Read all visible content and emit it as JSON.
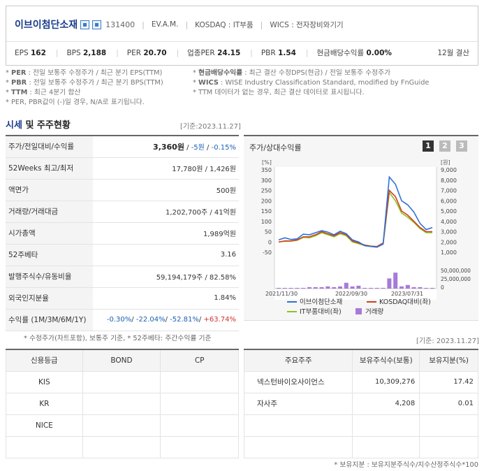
{
  "company": {
    "name": "이브이첨단소재",
    "code": "131400",
    "ceo": "EV.A.M.",
    "market": "KOSDAQ : IT부품",
    "wics": "WICS : 전자장비와기기"
  },
  "metrics": [
    {
      "label": "EPS",
      "value": "162"
    },
    {
      "label": "BPS",
      "value": "2,188"
    },
    {
      "label": "PER",
      "value": "20.70"
    },
    {
      "label": "업종PER",
      "value": "24.15"
    },
    {
      "label": "PBR",
      "value": "1.54"
    },
    {
      "label": "현금배당수익률",
      "value": "0.00%"
    }
  ],
  "settlement": "12월 결산",
  "notes_left": [
    {
      "key": "PER",
      "text": ": 전일 보통주 수정주가 / 최근 분기 EPS(TTM)"
    },
    {
      "key": "PBR",
      "text": ": 전일 보통주 수정주가 / 최근 분기 BPS(TTM)"
    },
    {
      "key": "TTM",
      "text": ": 최근 4분기 합산"
    },
    {
      "key": "",
      "text": "PER, PBR값이 (-)일 경우, N/A로 표기됩니다."
    }
  ],
  "notes_right": [
    {
      "key": "현금배당수익률",
      "text": ": 최근 결산 수정DPS(현금) / 전일 보통주 수정주가"
    },
    {
      "key": "WICS",
      "text": ": WISE Industry Classification Standard, modified by FnGuide"
    },
    {
      "key": "",
      "text": "TTM 데이터가 없는 경우, 최근 결산 데이터로 표시됩니다."
    }
  ],
  "section": {
    "title_hl": "시세",
    "title_rest": " 및 주주현황",
    "base_date": "[기준:2023.11.27]"
  },
  "quote": {
    "price_label": "주가/전일대비/수익률",
    "price": "3,360원",
    "change": "-5원",
    "change_pct": "-0.15%",
    "rows": [
      {
        "label": "52Weeks 최고/최저",
        "value": "17,780원 / 1,426원"
      },
      {
        "label": "액면가",
        "value": "500원"
      },
      {
        "label": "거래량/거래대금",
        "value": "1,202,700주 / 41억원"
      },
      {
        "label": "시가총액",
        "value": "1,989억원"
      },
      {
        "label": "52주베타",
        "value": "3.16"
      },
      {
        "label": "발행주식수/유동비율",
        "value": "59,194,179주 / 82.58%"
      },
      {
        "label": "외국인지분율",
        "value": "1.84%"
      }
    ],
    "return_label": "수익률 (1M/3M/6M/1Y)",
    "returns": [
      "-0.30%",
      "-22.04%",
      "-52.81%",
      "+63.74%"
    ]
  },
  "quote_footnote": "* 수정주가(차트포함), 보통주 기준, * 52주베타: 주간수익률 기준",
  "chart_panel": {
    "title": "주가/상대수익률",
    "pages": [
      "1",
      "2",
      "3"
    ],
    "selected_page": "1"
  },
  "chart_data": {
    "type": "line",
    "left_axis_unit": "[%]",
    "right_axis_unit": "[원]",
    "left_ticks": [
      350,
      300,
      250,
      200,
      150,
      100,
      50,
      0,
      -50
    ],
    "right_ticks": [
      "9,000",
      "8,000",
      "7,000",
      "6,000",
      "5,000",
      "4,000",
      "3,000",
      "2,000",
      "1,000"
    ],
    "volume_ticks": [
      "50,000,000",
      "25,000,000",
      "0"
    ],
    "x_labels": [
      "2021/11/30",
      "2022/09/30",
      "2023/07/31"
    ],
    "series": [
      {
        "name": "이브이첨단소재",
        "color": "#2f6fdb",
        "values": [
          10,
          20,
          12,
          15,
          38,
          35,
          45,
          55,
          48,
          35,
          52,
          40,
          10,
          0,
          -18,
          -22,
          -25,
          -10,
          315,
          280,
          200,
          180,
          145,
          90,
          60,
          70
        ]
      },
      {
        "name": "KOSDAQ대비(좌)",
        "color": "#d23f1b",
        "values": [
          0,
          5,
          5,
          10,
          25,
          25,
          35,
          50,
          40,
          30,
          45,
          35,
          5,
          -5,
          -15,
          -20,
          -22,
          -5,
          250,
          220,
          150,
          130,
          100,
          70,
          50,
          50
        ]
      },
      {
        "name": "IT부품대비(좌)",
        "color": "#8cc21f",
        "values": [
          0,
          3,
          4,
          8,
          22,
          20,
          30,
          45,
          35,
          25,
          40,
          30,
          0,
          -8,
          -18,
          -22,
          -25,
          -10,
          240,
          200,
          140,
          120,
          95,
          65,
          45,
          45
        ]
      }
    ],
    "volume": {
      "name": "거래량",
      "color": "#a67bd8",
      "values": [
        1,
        1,
        1,
        1,
        1,
        2,
        2,
        2,
        3,
        2,
        3,
        8,
        3,
        4,
        1,
        1,
        1,
        1,
        14,
        22,
        3,
        5,
        2,
        2,
        1,
        1
      ]
    }
  },
  "credit": {
    "headers": [
      "신용등급",
      "BOND",
      "CP"
    ],
    "rows": [
      [
        "KIS",
        "",
        ""
      ],
      [
        "KR",
        "",
        ""
      ],
      [
        "NICE",
        "",
        ""
      ],
      [
        "",
        "",
        ""
      ]
    ]
  },
  "holders": {
    "base_date": "[기준: 2023.11.27]",
    "headers": [
      "주요주주",
      "보유주식수(보통)",
      "보유지분(%)"
    ],
    "rows": [
      [
        "넥스턴바이오사이언스",
        "10,309,276",
        "17.42"
      ],
      [
        "자사주",
        "4,208",
        "0.01"
      ],
      [
        "",
        "",
        ""
      ],
      [
        "",
        "",
        ""
      ]
    ]
  },
  "holders_footnote": "* 보유지분 : 보유지분주식수/지수산정주식수*100"
}
